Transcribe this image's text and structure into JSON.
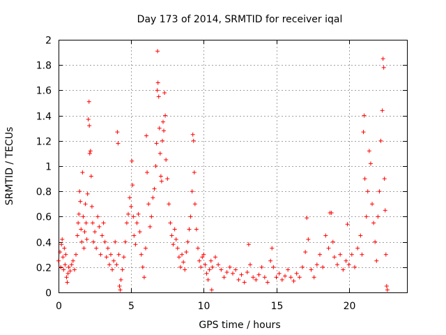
{
  "chart_data": {
    "type": "scatter",
    "title": "Day 173 of 2014, SRMTID for receiver iqal",
    "xlabel": "GPS time / hours",
    "ylabel": "SRMTID / TECUs",
    "xlim": [
      0,
      24
    ],
    "ylim": [
      0,
      2
    ],
    "xticks": [
      0,
      5,
      10,
      15,
      20
    ],
    "xtick_labels": [
      "0",
      "5",
      "10",
      "15",
      "20"
    ],
    "yticks": [
      0,
      0.2,
      0.4,
      0.6,
      0.8,
      1.0,
      1.2,
      1.4,
      1.6,
      1.8,
      2.0
    ],
    "ytick_labels": [
      "0",
      "0.2",
      "0.4",
      "0.6",
      "0.8",
      "1",
      "1.2",
      "1.4",
      "1.6",
      "1.8",
      "2"
    ],
    "grid": true,
    "marker": "+",
    "color": "#ff0000",
    "series": [
      {
        "name": "SRMTID",
        "points": [
          [
            0.0,
            0.25
          ],
          [
            0.1,
            0.32
          ],
          [
            0.15,
            0.2
          ],
          [
            0.2,
            0.38
          ],
          [
            0.25,
            0.42
          ],
          [
            0.3,
            0.28
          ],
          [
            0.35,
            0.18
          ],
          [
            0.4,
            0.35
          ],
          [
            0.45,
            0.22
          ],
          [
            0.5,
            0.3
          ],
          [
            0.55,
            0.12
          ],
          [
            0.6,
            0.08
          ],
          [
            0.65,
            0.15
          ],
          [
            0.7,
            0.2
          ],
          [
            0.8,
            0.17
          ],
          [
            0.9,
            0.22
          ],
          [
            1.0,
            0.25
          ],
          [
            1.1,
            0.18
          ],
          [
            1.2,
            0.3
          ],
          [
            1.3,
            0.45
          ],
          [
            1.35,
            0.55
          ],
          [
            1.4,
            0.62
          ],
          [
            1.45,
            0.8
          ],
          [
            1.5,
            0.72
          ],
          [
            1.55,
            0.5
          ],
          [
            1.6,
            0.4
          ],
          [
            1.65,
            0.95
          ],
          [
            1.7,
            0.6
          ],
          [
            1.75,
            0.35
          ],
          [
            1.8,
            0.48
          ],
          [
            1.85,
            0.7
          ],
          [
            1.9,
            0.55
          ],
          [
            1.95,
            0.42
          ],
          [
            2.0,
            0.78
          ],
          [
            2.05,
            1.37
          ],
          [
            2.1,
            1.51
          ],
          [
            2.12,
            1.32
          ],
          [
            2.15,
            1.1
          ],
          [
            2.2,
            1.12
          ],
          [
            2.25,
            0.92
          ],
          [
            2.3,
            0.68
          ],
          [
            2.35,
            0.55
          ],
          [
            2.4,
            0.4
          ],
          [
            2.5,
            0.48
          ],
          [
            2.6,
            0.35
          ],
          [
            2.7,
            0.6
          ],
          [
            2.8,
            0.52
          ],
          [
            2.9,
            0.3
          ],
          [
            3.0,
            0.45
          ],
          [
            3.1,
            0.55
          ],
          [
            3.2,
            0.4
          ],
          [
            3.3,
            0.28
          ],
          [
            3.4,
            0.35
          ],
          [
            3.5,
            0.22
          ],
          [
            3.6,
            0.3
          ],
          [
            3.7,
            0.18
          ],
          [
            3.8,
            0.25
          ],
          [
            3.9,
            0.4
          ],
          [
            4.0,
            0.22
          ],
          [
            4.05,
            1.27
          ],
          [
            4.1,
            1.18
          ],
          [
            4.15,
            0.3
          ],
          [
            4.2,
            0.05
          ],
          [
            4.25,
            0.02
          ],
          [
            4.3,
            0.1
          ],
          [
            4.4,
            0.18
          ],
          [
            4.5,
            0.28
          ],
          [
            4.6,
            0.4
          ],
          [
            4.7,
            0.55
          ],
          [
            4.8,
            0.62
          ],
          [
            4.9,
            0.75
          ],
          [
            5.0,
            0.68
          ],
          [
            5.05,
            1.04
          ],
          [
            5.1,
            0.85
          ],
          [
            5.15,
            0.6
          ],
          [
            5.2,
            0.45
          ],
          [
            5.3,
            0.38
          ],
          [
            5.4,
            0.55
          ],
          [
            5.5,
            0.62
          ],
          [
            5.6,
            0.48
          ],
          [
            5.7,
            0.3
          ],
          [
            5.8,
            0.2
          ],
          [
            5.9,
            0.12
          ],
          [
            6.0,
            0.35
          ],
          [
            6.05,
            1.24
          ],
          [
            6.1,
            0.95
          ],
          [
            6.2,
            0.7
          ],
          [
            6.3,
            0.52
          ],
          [
            6.4,
            0.6
          ],
          [
            6.5,
            0.75
          ],
          [
            6.6,
            0.82
          ],
          [
            6.7,
            1.0
          ],
          [
            6.75,
            1.18
          ],
          [
            6.8,
            1.6
          ],
          [
            6.82,
            1.91
          ],
          [
            6.85,
            1.66
          ],
          [
            6.9,
            1.55
          ],
          [
            6.95,
            1.3
          ],
          [
            7.0,
            1.1
          ],
          [
            7.05,
            0.92
          ],
          [
            7.1,
            0.88
          ],
          [
            7.15,
            1.2
          ],
          [
            7.2,
            1.35
          ],
          [
            7.25,
            1.28
          ],
          [
            7.3,
            1.58
          ],
          [
            7.35,
            1.4
          ],
          [
            7.4,
            1.05
          ],
          [
            7.5,
            0.9
          ],
          [
            7.6,
            0.7
          ],
          [
            7.7,
            0.55
          ],
          [
            7.8,
            0.45
          ],
          [
            7.9,
            0.38
          ],
          [
            8.0,
            0.5
          ],
          [
            8.1,
            0.42
          ],
          [
            8.2,
            0.35
          ],
          [
            8.3,
            0.28
          ],
          [
            8.4,
            0.2
          ],
          [
            8.5,
            0.3
          ],
          [
            8.6,
            0.24
          ],
          [
            8.7,
            0.18
          ],
          [
            8.8,
            0.32
          ],
          [
            8.9,
            0.4
          ],
          [
            9.0,
            0.5
          ],
          [
            9.1,
            0.6
          ],
          [
            9.2,
            0.8
          ],
          [
            9.25,
            1.25
          ],
          [
            9.3,
            1.2
          ],
          [
            9.35,
            0.95
          ],
          [
            9.4,
            0.7
          ],
          [
            9.5,
            0.5
          ],
          [
            9.6,
            0.35
          ],
          [
            9.7,
            0.25
          ],
          [
            9.8,
            0.2
          ],
          [
            9.9,
            0.28
          ],
          [
            10.0,
            0.3
          ],
          [
            10.1,
            0.22
          ],
          [
            10.2,
            0.15
          ],
          [
            10.3,
            0.1
          ],
          [
            10.4,
            0.18
          ],
          [
            10.5,
            0.25
          ],
          [
            10.55,
            0.02
          ],
          [
            10.6,
            0.2
          ],
          [
            10.8,
            0.28
          ],
          [
            11.0,
            0.22
          ],
          [
            11.2,
            0.18
          ],
          [
            11.4,
            0.12
          ],
          [
            11.6,
            0.16
          ],
          [
            11.8,
            0.2
          ],
          [
            12.0,
            0.15
          ],
          [
            12.2,
            0.18
          ],
          [
            12.4,
            0.1
          ],
          [
            12.6,
            0.14
          ],
          [
            12.8,
            0.08
          ],
          [
            13.0,
            0.16
          ],
          [
            13.1,
            0.38
          ],
          [
            13.2,
            0.22
          ],
          [
            13.4,
            0.12
          ],
          [
            13.6,
            0.1
          ],
          [
            13.8,
            0.14
          ],
          [
            14.0,
            0.2
          ],
          [
            14.2,
            0.12
          ],
          [
            14.4,
            0.08
          ],
          [
            14.6,
            0.25
          ],
          [
            14.7,
            0.35
          ],
          [
            14.8,
            0.2
          ],
          [
            15.0,
            0.12
          ],
          [
            15.2,
            0.15
          ],
          [
            15.4,
            0.1
          ],
          [
            15.6,
            0.13
          ],
          [
            15.8,
            0.18
          ],
          [
            16.0,
            0.12
          ],
          [
            16.2,
            0.09
          ],
          [
            16.4,
            0.15
          ],
          [
            16.6,
            0.12
          ],
          [
            16.8,
            0.2
          ],
          [
            17.0,
            0.32
          ],
          [
            17.1,
            0.59
          ],
          [
            17.2,
            0.42
          ],
          [
            17.4,
            0.18
          ],
          [
            17.6,
            0.12
          ],
          [
            17.8,
            0.22
          ],
          [
            18.0,
            0.3
          ],
          [
            18.2,
            0.2
          ],
          [
            18.4,
            0.45
          ],
          [
            18.6,
            0.35
          ],
          [
            18.7,
            0.63
          ],
          [
            18.8,
            0.63
          ],
          [
            18.9,
            0.4
          ],
          [
            19.0,
            0.28
          ],
          [
            19.2,
            0.22
          ],
          [
            19.4,
            0.3
          ],
          [
            19.6,
            0.18
          ],
          [
            19.8,
            0.25
          ],
          [
            19.9,
            0.54
          ],
          [
            20.0,
            0.22
          ],
          [
            20.2,
            0.3
          ],
          [
            20.4,
            0.2
          ],
          [
            20.6,
            0.35
          ],
          [
            20.8,
            0.45
          ],
          [
            20.9,
            0.3
          ],
          [
            21.0,
            1.27
          ],
          [
            21.05,
            1.4
          ],
          [
            21.1,
            0.9
          ],
          [
            21.2,
            0.6
          ],
          [
            21.3,
            0.8
          ],
          [
            21.4,
            1.12
          ],
          [
            21.5,
            1.02
          ],
          [
            21.6,
            0.7
          ],
          [
            21.7,
            0.55
          ],
          [
            21.8,
            0.4
          ],
          [
            21.9,
            0.25
          ],
          [
            22.0,
            0.6
          ],
          [
            22.1,
            0.8
          ],
          [
            22.2,
            1.2
          ],
          [
            22.3,
            1.44
          ],
          [
            22.35,
            1.85
          ],
          [
            22.4,
            1.78
          ],
          [
            22.45,
            0.9
          ],
          [
            22.5,
            0.65
          ],
          [
            22.55,
            0.3
          ],
          [
            22.6,
            0.05
          ],
          [
            22.65,
            0.02
          ]
        ]
      }
    ]
  }
}
